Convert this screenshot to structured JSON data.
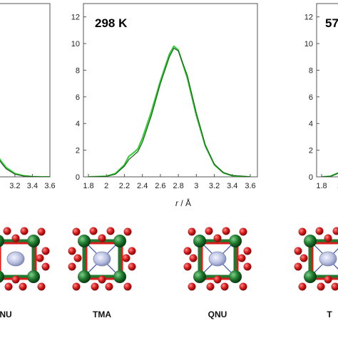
{
  "chart_data": [
    {
      "type": "line",
      "panel": "left (cropped)",
      "title": "",
      "xlim": [
        1.8,
        3.6
      ],
      "ylim": [
        0,
        13
      ],
      "x_ticks_visible": [
        "3.2",
        "3.4",
        "3.6"
      ],
      "series": [
        {
          "color": "#2bd02b",
          "x": [
            3.0,
            3.05,
            3.1,
            3.2,
            3.3,
            3.4,
            3.5,
            3.6
          ],
          "y": [
            1.6,
            1.1,
            0.7,
            0.25,
            0.08,
            0.02,
            0,
            0
          ]
        },
        {
          "color": "#1a5a1a",
          "x": [
            3.0,
            3.05,
            3.1,
            3.2,
            3.3,
            3.4,
            3.5,
            3.6
          ],
          "y": [
            1.5,
            1.0,
            0.6,
            0.2,
            0.06,
            0.02,
            0,
            0
          ]
        }
      ]
    },
    {
      "type": "line",
      "panel": "center",
      "title": "298 K",
      "xlabel_italic": "r",
      "xlabel_rest": " / Å",
      "xlim": [
        1.8,
        3.6
      ],
      "ylim": [
        0,
        13
      ],
      "x_ticks": [
        "1.8",
        "2",
        "2.2",
        "2.4",
        "2.6",
        "2.8",
        "3",
        "3.2",
        "3.4",
        "3.6"
      ],
      "y_ticks": [
        "0",
        "2",
        "4",
        "6",
        "8",
        "10",
        "12"
      ],
      "series": [
        {
          "color": "#2bd02b",
          "x": [
            1.8,
            2.0,
            2.1,
            2.2,
            2.25,
            2.3,
            2.35,
            2.4,
            2.5,
            2.6,
            2.7,
            2.75,
            2.8,
            2.9,
            3.0,
            3.1,
            3.2,
            3.3,
            3.4,
            3.6
          ],
          "y": [
            0,
            0.05,
            0.25,
            0.9,
            1.55,
            1.8,
            2.1,
            2.9,
            4.9,
            7.2,
            9.2,
            9.8,
            9.5,
            7.4,
            4.6,
            2.3,
            0.9,
            0.3,
            0.08,
            0
          ]
        },
        {
          "color": "#1a5a1a",
          "x": [
            1.8,
            2.0,
            2.1,
            2.2,
            2.25,
            2.3,
            2.35,
            2.4,
            2.5,
            2.6,
            2.7,
            2.75,
            2.8,
            2.9,
            3.0,
            3.1,
            3.2,
            3.3,
            3.4,
            3.6
          ],
          "y": [
            0,
            0.04,
            0.2,
            0.8,
            1.3,
            1.6,
            1.9,
            2.6,
            4.6,
            7.0,
            9.0,
            9.65,
            9.45,
            7.6,
            4.8,
            2.4,
            0.95,
            0.32,
            0.1,
            0
          ]
        }
      ]
    },
    {
      "type": "line",
      "panel": "right (cropped)",
      "title": "57",
      "xlim": [
        1.8,
        3.6
      ],
      "ylim": [
        0,
        13
      ],
      "y_ticks": [
        "0",
        "2",
        "4",
        "6",
        "8",
        "10",
        "12"
      ],
      "x_ticks_visible": [
        "1.8",
        "2"
      ],
      "series": [
        {
          "color": "#2bd02b",
          "x": [
            1.8,
            1.9,
            2.0,
            2.05
          ],
          "y": [
            0,
            0.05,
            0.35,
            0.8
          ]
        },
        {
          "color": "#1a5a1a",
          "x": [
            1.8,
            1.9,
            2.0,
            2.05
          ],
          "y": [
            0,
            0.04,
            0.3,
            0.7
          ]
        }
      ]
    }
  ],
  "structures": [
    {
      "label": "NU"
    },
    {
      "label": "TMA"
    },
    {
      "label": "QNU"
    },
    {
      "label": "T"
    }
  ],
  "colors": {
    "oxygen": "#d61c1c",
    "metal": "#1f7a2e",
    "guest": "#aab3d6",
    "bond_blue": "#3b4fb0"
  }
}
